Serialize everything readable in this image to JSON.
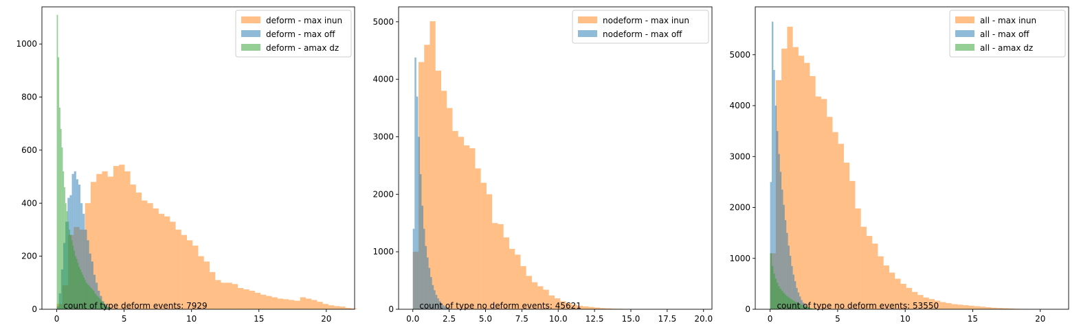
{
  "colors": {
    "blue": "#1f77b4",
    "orange": "#ff7f0e",
    "green": "#2ca02c"
  },
  "chart_data": [
    {
      "type": "histogram",
      "legend_position": "upper-right",
      "xlim": [
        -1.1,
        22.1
      ],
      "ylim": [
        0,
        1140
      ],
      "x_ticks": [
        0,
        5,
        10,
        15,
        20
      ],
      "x_tick_labels": [
        "0",
        "5",
        "10",
        "15",
        "20"
      ],
      "y_ticks": [
        0,
        200,
        400,
        600,
        800,
        1000
      ],
      "y_tick_labels": [
        "0",
        "200",
        "400",
        "600",
        "800",
        "1000"
      ],
      "annotation": "count of type deform events: 7929",
      "annotation_pos": [
        0.5,
        0
      ],
      "series": [
        {
          "name": "deform - max inun",
          "color": "orange",
          "bin_start": 0.0,
          "bin_width": 0.42,
          "values": [
            20,
            90,
            280,
            310,
            300,
            400,
            480,
            510,
            520,
            500,
            540,
            545,
            520,
            470,
            440,
            410,
            400,
            380,
            360,
            350,
            330,
            300,
            280,
            260,
            240,
            200,
            180,
            140,
            110,
            100,
            100,
            95,
            80,
            75,
            70,
            62,
            55,
            50,
            45,
            40,
            38,
            35,
            32,
            45,
            40,
            35,
            28,
            20,
            15,
            12,
            10,
            5,
            3
          ]
        },
        {
          "name": "deform - max off",
          "color": "blue",
          "bin_start": 0.0,
          "bin_width": 0.16,
          "values": [
            10,
            60,
            150,
            250,
            330,
            420,
            430,
            510,
            520,
            490,
            470,
            400,
            360,
            300,
            260,
            210,
            180,
            130,
            100,
            70,
            50,
            30,
            20,
            10,
            5
          ]
        },
        {
          "name": "deform - amax dz",
          "color": "green",
          "bin_start": 0.0,
          "bin_width": 0.09,
          "values": [
            1110,
            950,
            760,
            680,
            610,
            520,
            460,
            400,
            370,
            330,
            300,
            280,
            260,
            240,
            220,
            200,
            190,
            175,
            160,
            150,
            140,
            130,
            120,
            110,
            100,
            95,
            90,
            85,
            80,
            75,
            70,
            60,
            55,
            50,
            45,
            40,
            35,
            30,
            25,
            20,
            15,
            10,
            8,
            5
          ]
        }
      ]
    },
    {
      "type": "histogram",
      "legend_position": "upper-right",
      "xlim": [
        -0.98,
        20.58
      ],
      "ylim": [
        0,
        5260
      ],
      "x_ticks": [
        0,
        2.5,
        5,
        7.5,
        10,
        12.5,
        15,
        17.5,
        20
      ],
      "x_tick_labels": [
        "0.0",
        "2.5",
        "5.0",
        "7.5",
        "10.0",
        "12.5",
        "15.0",
        "17.5",
        "20.0"
      ],
      "y_ticks": [
        0,
        1000,
        2000,
        3000,
        4000,
        5000
      ],
      "y_tick_labels": [
        "0",
        "1000",
        "2000",
        "3000",
        "4000",
        "5000"
      ],
      "annotation": "count of type no deform events: 45621",
      "annotation_pos": [
        0.45,
        0
      ],
      "series": [
        {
          "name": "nodeform - max inun",
          "color": "orange",
          "bin_start": 0.0,
          "bin_width": 0.39,
          "values": [
            1000,
            4300,
            4600,
            5010,
            4150,
            3800,
            3500,
            3100,
            3000,
            2850,
            2800,
            2450,
            2200,
            2000,
            1500,
            1480,
            1250,
            1050,
            950,
            750,
            580,
            470,
            400,
            340,
            240,
            190,
            140,
            110,
            80,
            60,
            50,
            40,
            30,
            20,
            15,
            10,
            8,
            5,
            3,
            2
          ]
        },
        {
          "name": "nodeform - max off",
          "color": "blue",
          "bin_start": 0.0,
          "bin_width": 0.12,
          "values": [
            1400,
            4380,
            3700,
            3000,
            2350,
            1800,
            1400,
            1100,
            900,
            720,
            560,
            420,
            330,
            250,
            190,
            140,
            100,
            70,
            50,
            30,
            20,
            10
          ]
        }
      ]
    },
    {
      "type": "histogram",
      "legend_position": "upper-right",
      "xlim": [
        -1.1,
        22.1
      ],
      "ylim": [
        0,
        5940
      ],
      "x_ticks": [
        0,
        5,
        10,
        15,
        20
      ],
      "x_tick_labels": [
        "0",
        "5",
        "10",
        "15",
        "20"
      ],
      "y_ticks": [
        0,
        1000,
        2000,
        3000,
        4000,
        5000
      ],
      "y_tick_labels": [
        "0",
        "1000",
        "2000",
        "3000",
        "4000",
        "5000"
      ],
      "annotation": "count of type no deform events: 53550",
      "annotation_pos": [
        0.5,
        0
      ],
      "series": [
        {
          "name": "all - max inun",
          "color": "orange",
          "bin_start": 0.0,
          "bin_width": 0.42,
          "values": [
            1100,
            4500,
            5120,
            5550,
            5150,
            4980,
            4840,
            4580,
            4180,
            4130,
            3780,
            3480,
            3250,
            2880,
            2520,
            1980,
            1620,
            1440,
            1290,
            1040,
            860,
            720,
            600,
            500,
            420,
            340,
            280,
            230,
            200,
            170,
            140,
            120,
            100,
            90,
            80,
            70,
            60,
            50,
            40,
            30,
            25,
            20,
            15,
            10,
            8,
            5
          ]
        },
        {
          "name": "all - max off",
          "color": "blue",
          "bin_start": 0.0,
          "bin_width": 0.12,
          "values": [
            2500,
            5650,
            4700,
            4000,
            3500,
            3050,
            2700,
            2350,
            2050,
            1750,
            1500,
            1250,
            1050,
            850,
            680,
            550,
            420,
            330,
            250,
            180,
            130,
            90,
            60,
            40,
            25,
            15,
            8
          ]
        },
        {
          "name": "all - amax dz",
          "color": "green",
          "bin_start": 0.0,
          "bin_width": 0.12,
          "values": [
            1100,
            850,
            700,
            600,
            520,
            450,
            400,
            360,
            320,
            290,
            260,
            235,
            210,
            190,
            170,
            150,
            135,
            120,
            105,
            90,
            75,
            60,
            50,
            40,
            30,
            20,
            12,
            6
          ]
        }
      ]
    }
  ]
}
